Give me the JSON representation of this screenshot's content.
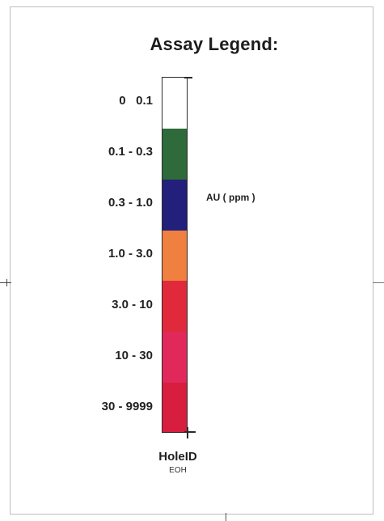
{
  "legend": {
    "title": "Assay Legend:",
    "unit_label": "AU ( ppm )",
    "ranges": [
      {
        "label": "0   0.1",
        "color": "#ffffff"
      },
      {
        "label": "0.1 - 0.3",
        "color": "#2f6a3a"
      },
      {
        "label": "0.3 - 1.0",
        "color": "#22207a"
      },
      {
        "label": "1.0 - 3.0",
        "color": "#f08040"
      },
      {
        "label": "3.0 - 10",
        "color": "#e02a3c"
      },
      {
        "label": "10 - 30",
        "color": "#e0285a"
      },
      {
        "label": "30 - 9999",
        "color": "#d81e3e"
      }
    ],
    "hole_id_label": "HoleID",
    "eoh_label": "EOH"
  }
}
